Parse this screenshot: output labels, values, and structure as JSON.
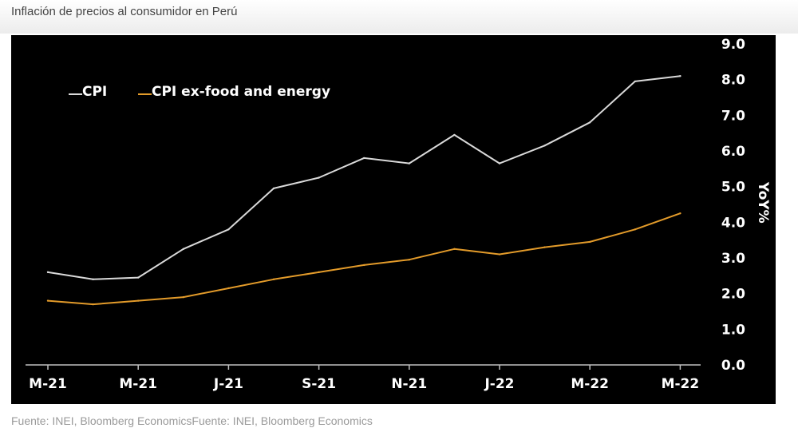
{
  "page": {
    "title": "Inflación de precios al consumidor en Perú",
    "source": "Fuente: INEI, Bloomberg EconomicsFuente: INEI, Bloomberg Economics"
  },
  "chart_data": {
    "type": "line",
    "title": "",
    "xlabel": "",
    "ylabel": "YoY%",
    "ylim": [
      0,
      9
    ],
    "yticks": [
      "0.0",
      "1.0",
      "2.0",
      "3.0",
      "4.0",
      "5.0",
      "6.0",
      "7.0",
      "8.0",
      "9.0"
    ],
    "y_axis_side": "right",
    "grid": false,
    "legend_position": "top-left",
    "background": "#000000",
    "x": [
      "2021-03",
      "2021-04",
      "2021-05",
      "2021-06",
      "2021-07",
      "2021-08",
      "2021-09",
      "2021-10",
      "2021-11",
      "2021-12",
      "2022-01",
      "2022-02",
      "2022-03",
      "2022-04",
      "2022-05"
    ],
    "xtick_labels": [
      "M-21",
      "M-21",
      "J-21",
      "S-21",
      "N-21",
      "J-22",
      "M-22",
      "M-22"
    ],
    "series": [
      {
        "name": "CPI",
        "color": "#d9d9d9",
        "values": [
          2.6,
          2.4,
          2.45,
          3.25,
          3.8,
          4.95,
          5.25,
          5.8,
          5.65,
          6.45,
          5.65,
          6.15,
          6.8,
          7.95,
          8.1
        ]
      },
      {
        "name": "CPI ex-food and energy",
        "color": "#e39b2a",
        "values": [
          1.8,
          1.7,
          1.8,
          1.9,
          2.15,
          2.4,
          2.6,
          2.8,
          2.95,
          3.25,
          3.1,
          3.3,
          3.45,
          3.8,
          4.25
        ]
      }
    ]
  }
}
